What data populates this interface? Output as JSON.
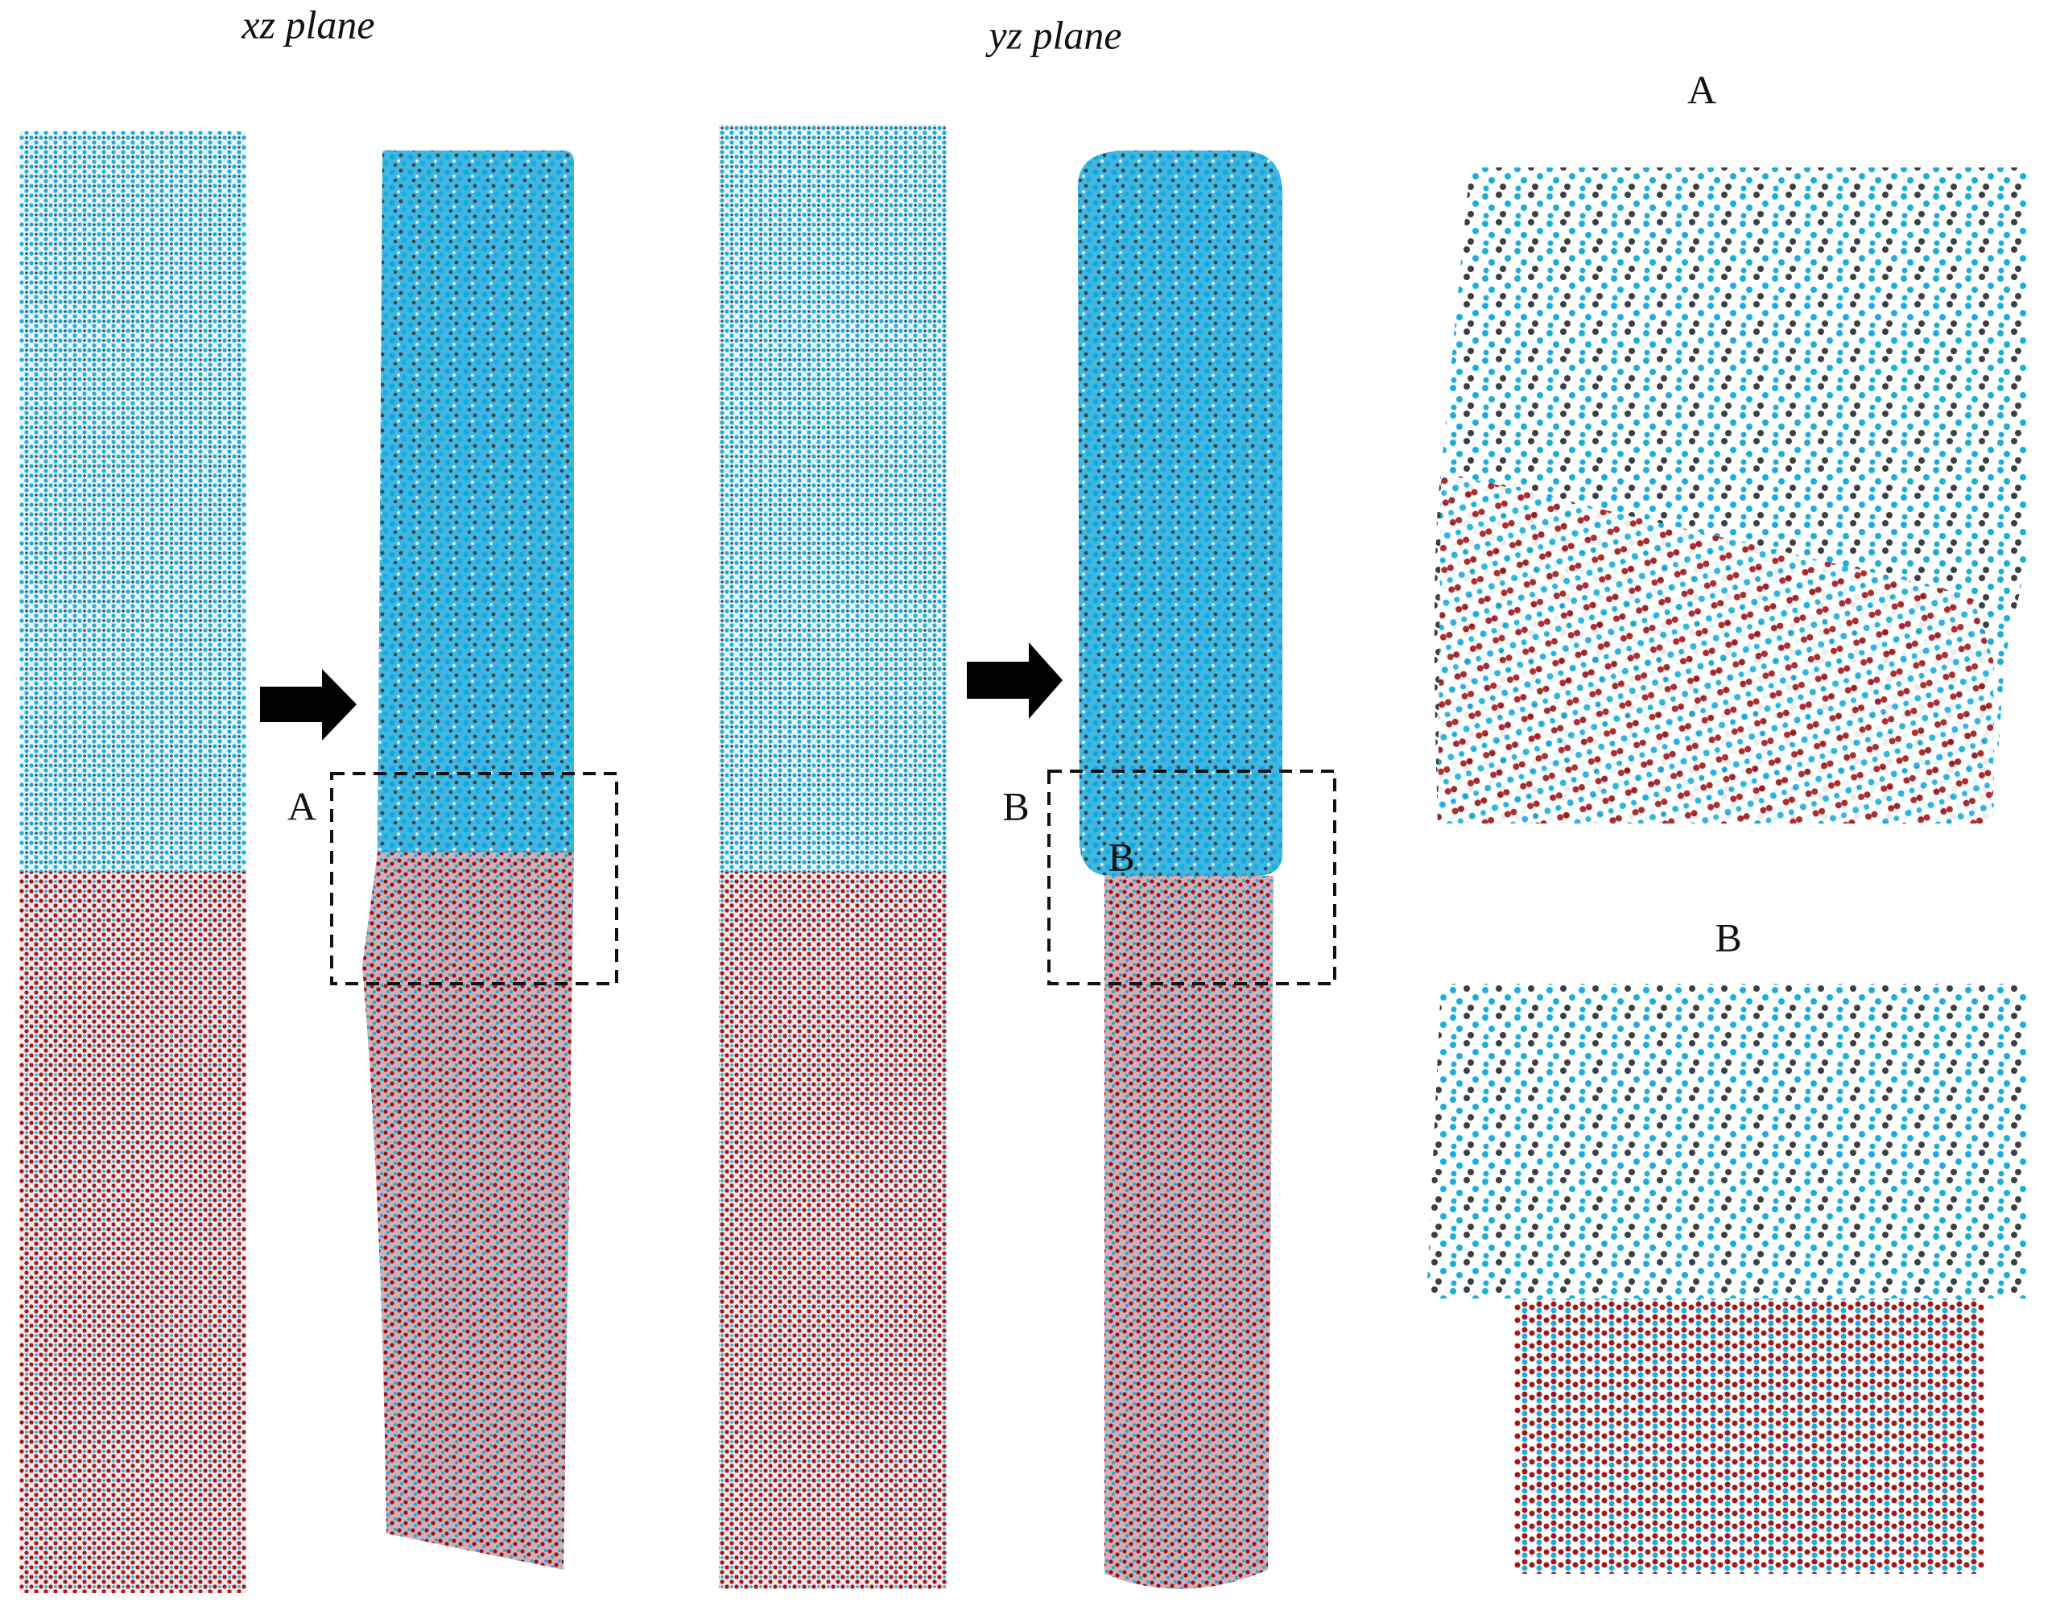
{
  "headings": [
    "xz plane",
    "yz plane"
  ],
  "box_labels": [
    "A",
    "B"
  ],
  "inner_label": "B",
  "zoom_titles": [
    "A",
    "B"
  ]
}
